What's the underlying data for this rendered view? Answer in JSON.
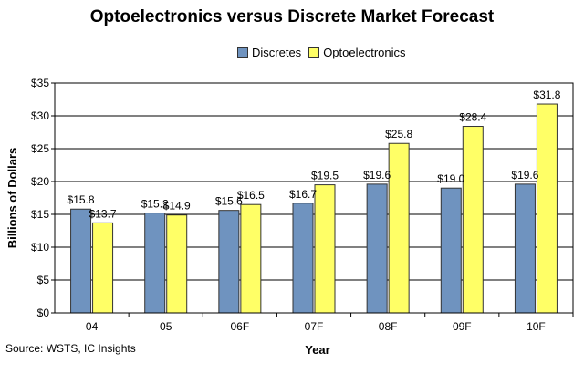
{
  "chart_data": {
    "type": "bar",
    "title": "Optoelectronics versus Discrete Market Forecast",
    "xlabel": "Year",
    "ylabel": "Billions of Dollars",
    "categories": [
      "04",
      "05",
      "06F",
      "07F",
      "08F",
      "09F",
      "10F"
    ],
    "series": [
      {
        "name": "Discretes",
        "color": "#6f93bf",
        "values": [
          15.8,
          15.2,
          15.6,
          16.7,
          19.6,
          19.0,
          19.6
        ],
        "labels": [
          "$15.8",
          "$15.2",
          "$15.6",
          "$16.7",
          "$19.6",
          "$19.0",
          "$19.6"
        ]
      },
      {
        "name": "Optoelectronics",
        "color": "#ffff66",
        "values": [
          13.7,
          14.9,
          16.5,
          19.5,
          25.8,
          28.4,
          31.8
        ],
        "labels": [
          "$13.7",
          "$14.9",
          "$16.5",
          "$19.5",
          "$25.8",
          "$28.4",
          "$31.8"
        ]
      }
    ],
    "ylim": [
      0,
      35
    ],
    "yticks": [
      "$0",
      "$5",
      "$10",
      "$15",
      "$20",
      "$25",
      "$30",
      "$35"
    ],
    "ytick_values": [
      0,
      5,
      10,
      15,
      20,
      25,
      30,
      35
    ],
    "grid": true,
    "legend_position": "top-center",
    "source": "Source: WSTS, IC Insights"
  }
}
